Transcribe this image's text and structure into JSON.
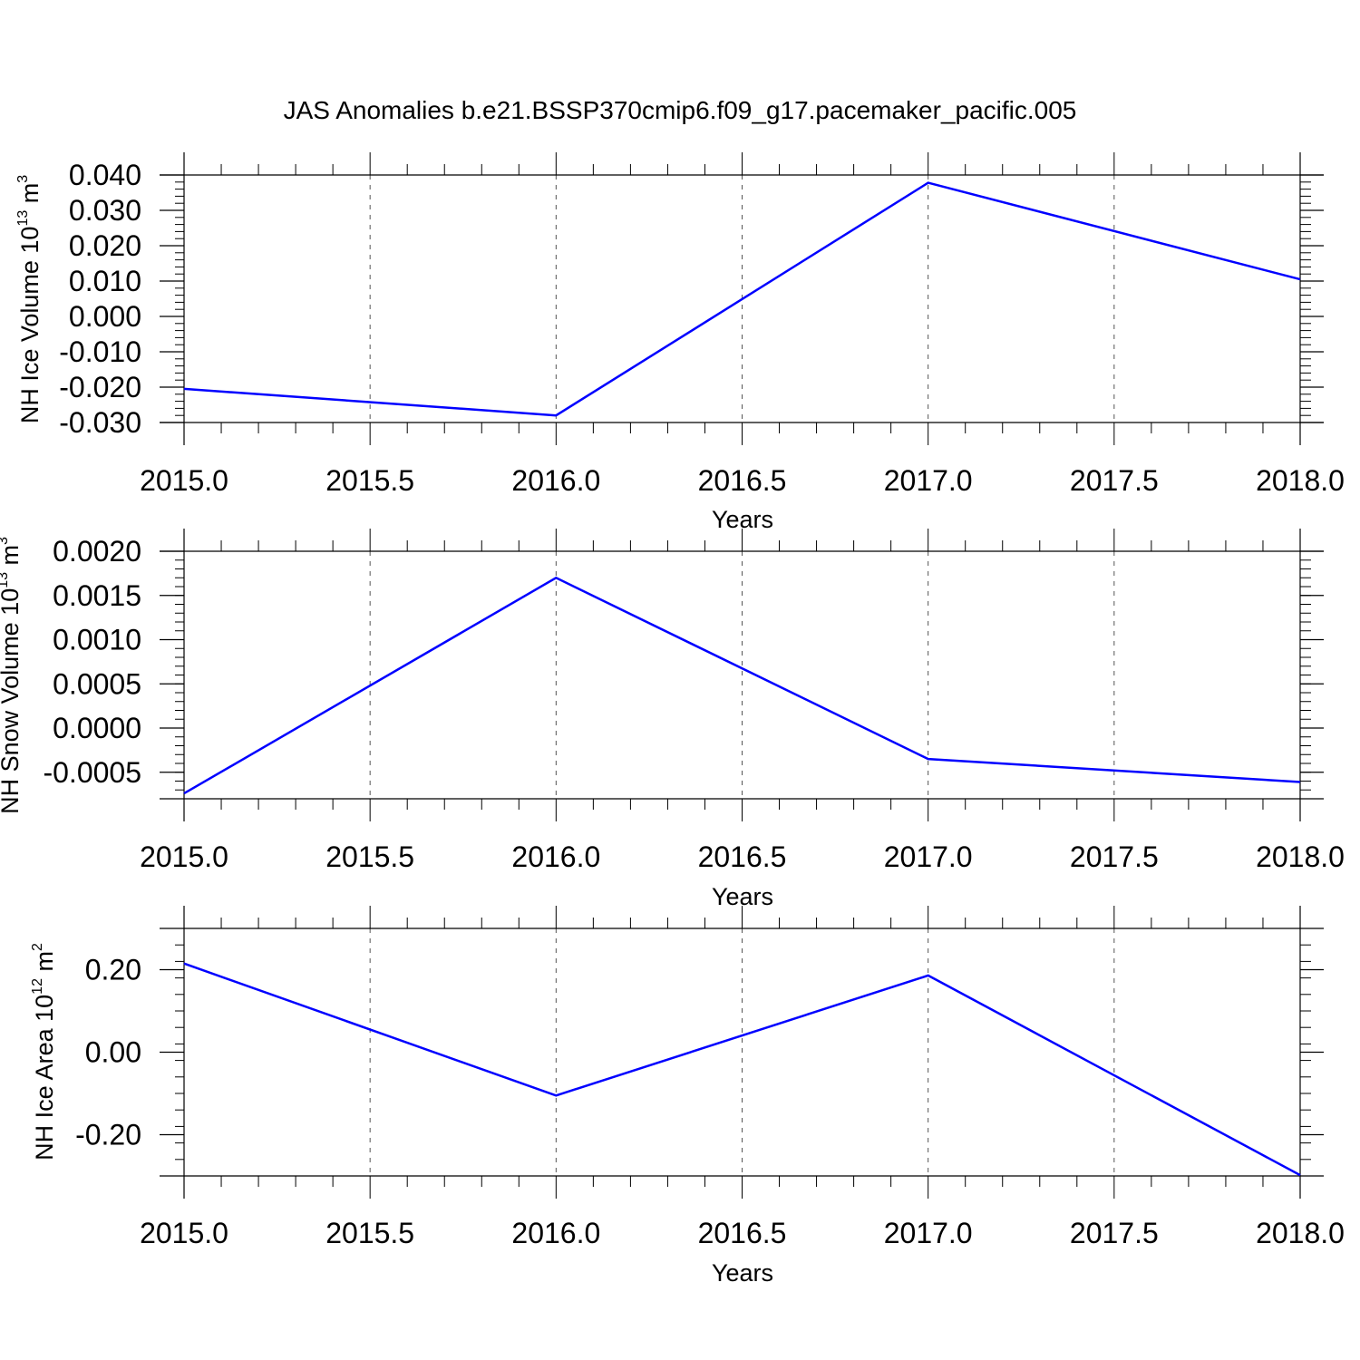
{
  "title": "JAS Anomalies b.e21.BSSP370cmip6.f09_g17.pacemaker_pacific.005",
  "colors": {
    "series": "#0000ff",
    "axis": "#000000",
    "grid": "#555555",
    "background": "#ffffff"
  },
  "chart_data": [
    {
      "type": "line",
      "ylabel": {
        "main": "NH Ice Volume 10",
        "exponent": "13",
        "unit": " m",
        "unit_exponent": "3"
      },
      "xlabel": "Years",
      "xlim": [
        2015.0,
        2018.0
      ],
      "ylim": [
        -0.03,
        0.04
      ],
      "x_ticks": [
        "2015.0",
        "2015.5",
        "2016.0",
        "2016.5",
        "2017.0",
        "2017.5",
        "2018.0"
      ],
      "y_ticks": [
        "0.040",
        "0.030",
        "0.020",
        "0.010",
        "0.000",
        "-0.010",
        "-0.020",
        "-0.030"
      ],
      "grid": "vertical dashed",
      "series": [
        {
          "x": [
            2015,
            2016,
            2017,
            2018
          ],
          "values": [
            -0.0205,
            -0.028,
            0.0378,
            0.0105
          ]
        }
      ]
    },
    {
      "type": "line",
      "ylabel": {
        "main": "NH Snow Volume 10",
        "exponent": "13",
        "unit": " m",
        "unit_exponent": "3"
      },
      "xlabel": "Years",
      "xlim": [
        2015.0,
        2018.0
      ],
      "ylim": [
        -0.0008,
        0.002
      ],
      "x_ticks": [
        "2015.0",
        "2015.5",
        "2016.0",
        "2016.5",
        "2017.0",
        "2017.5",
        "2018.0"
      ],
      "y_ticks": [
        "0.0020",
        "0.0015",
        "0.0010",
        "0.0005",
        "0.0000",
        "-0.0005"
      ],
      "grid": "vertical dashed",
      "series": [
        {
          "x": [
            2015,
            2016,
            2017,
            2018
          ],
          "values": [
            -0.00074,
            0.0017,
            -0.00035,
            -0.00061
          ]
        }
      ]
    },
    {
      "type": "line",
      "ylabel": {
        "main": "NH Ice Area 10",
        "exponent": "12",
        "unit": " m",
        "unit_exponent": "2"
      },
      "xlabel": "Years",
      "xlim": [
        2015.0,
        2018.0
      ],
      "ylim": [
        -0.3,
        0.3
      ],
      "x_ticks": [
        "2015.0",
        "2015.5",
        "2016.0",
        "2016.5",
        "2017.0",
        "2017.5",
        "2018.0"
      ],
      "y_ticks": [
        "0.20",
        "0.00",
        "-0.20"
      ],
      "grid": "vertical dashed",
      "series": [
        {
          "x": [
            2015,
            2016,
            2017,
            2018
          ],
          "values": [
            0.215,
            -0.105,
            0.186,
            -0.298
          ]
        }
      ]
    }
  ]
}
